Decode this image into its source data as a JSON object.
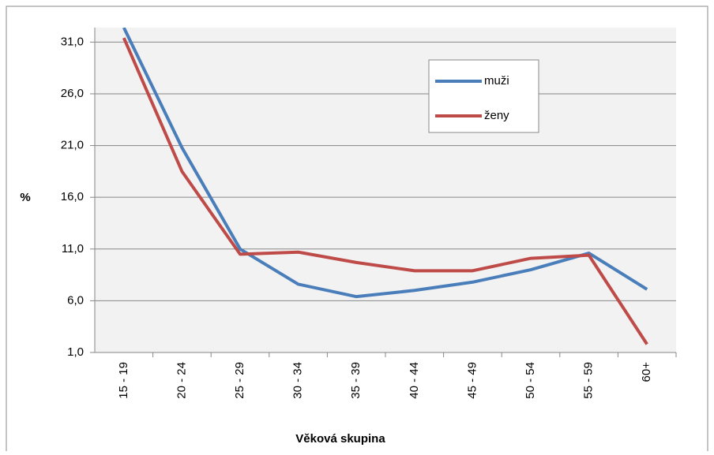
{
  "chart_data": {
    "type": "line",
    "y_label": "%",
    "x_label": "Věková skupina",
    "categories": [
      "15 - 19",
      "20 - 24",
      "25 - 29",
      "30 - 34",
      "35 - 39",
      "40 - 44",
      "45 - 49",
      "50 - 54",
      "55 - 59",
      "60+"
    ],
    "series": [
      {
        "name": "muži",
        "color": "#4a7ebb",
        "values": [
          32.4,
          20.8,
          11.0,
          7.6,
          6.4,
          7.0,
          7.8,
          9.0,
          10.6,
          7.1
        ]
      },
      {
        "name": "ženy",
        "color": "#be4b48",
        "values": [
          31.4,
          18.5,
          10.5,
          10.7,
          9.7,
          8.9,
          8.9,
          10.1,
          10.4,
          1.8
        ]
      }
    ],
    "ylim": [
      1,
      32.4
    ],
    "yticks": [
      {
        "value": 1,
        "label": "1,0"
      },
      {
        "value": 6,
        "label": "6,0"
      },
      {
        "value": 11,
        "label": "11,0"
      },
      {
        "value": 16,
        "label": "16,0"
      },
      {
        "value": 21,
        "label": "21,0"
      },
      {
        "value": 26,
        "label": "26,0"
      },
      {
        "value": 31,
        "label": "31,0"
      }
    ],
    "grid": true
  }
}
